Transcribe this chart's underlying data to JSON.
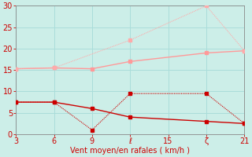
{
  "bg_color": "#cceee8",
  "grid_color": "#aaddda",
  "x_ticks": [
    3,
    6,
    9,
    12,
    15,
    18,
    21
  ],
  "y_ticks": [
    0,
    5,
    10,
    15,
    20,
    25,
    30
  ],
  "xlim": [
    3,
    21
  ],
  "ylim": [
    0,
    30
  ],
  "xlabel": "Vent moyen/en rafales ( km/h )",
  "xlabel_color": "#cc0000",
  "xlabel_fontsize": 7,
  "line_solid_light_x": [
    3,
    6,
    9,
    12,
    18,
    21
  ],
  "line_solid_light_y": [
    15.3,
    15.5,
    15.3,
    17.0,
    19.0,
    19.5
  ],
  "line_solid_light_color": "#ff9999",
  "line_dotted_light_x": [
    3,
    6,
    12,
    18,
    21
  ],
  "line_dotted_light_y": [
    15.3,
    15.5,
    22.0,
    30.0,
    19.5
  ],
  "line_dotted_light_color": "#ffaaaa",
  "line_solid_dark_x": [
    3,
    6,
    9,
    12,
    18,
    21
  ],
  "line_solid_dark_y": [
    7.5,
    7.5,
    6.0,
    4.0,
    3.0,
    2.5
  ],
  "line_solid_dark_color": "#cc0000",
  "line_dotted_dark_x": [
    3,
    6,
    9,
    12,
    18,
    21
  ],
  "line_dotted_dark_y": [
    7.5,
    7.5,
    1.0,
    9.5,
    9.5,
    2.5
  ],
  "line_dotted_dark_color": "#cc0000",
  "tick_color": "#cc0000",
  "tick_fontsize": 7,
  "marker_size": 2.5,
  "special_x_labels": {
    "12": "ℓ",
    "18": "ζ"
  }
}
